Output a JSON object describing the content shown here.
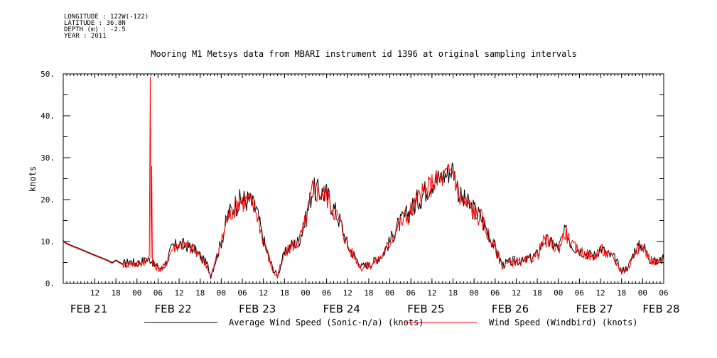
{
  "metadata": {
    "longitude": "LONGITUDE : 122W(-122)",
    "latitude": "LATITUDE : 36.8N",
    "depth": "DEPTH (m) : -2.5",
    "year": "YEAR : 2011"
  },
  "chart_data": {
    "type": "line",
    "title": "Mooring M1 Metsys data from MBARI instrument id 1396 at original sampling intervals",
    "ylabel": "knots",
    "xlabel": "",
    "ylim": [
      0,
      50
    ],
    "y_ticks": [
      "0.",
      "10.",
      "20.",
      "30.",
      "40.",
      "50."
    ],
    "xlim_hours": [
      3,
      174
    ],
    "hour_ticks": [
      {
        "h": 12,
        "label": "12"
      },
      {
        "h": 18,
        "label": "18"
      },
      {
        "h": 24,
        "label": "00"
      },
      {
        "h": 30,
        "label": "06"
      },
      {
        "h": 36,
        "label": "12"
      },
      {
        "h": 42,
        "label": "18"
      },
      {
        "h": 48,
        "label": "00"
      },
      {
        "h": 54,
        "label": "06"
      },
      {
        "h": 60,
        "label": "12"
      },
      {
        "h": 66,
        "label": "18"
      },
      {
        "h": 72,
        "label": "00"
      },
      {
        "h": 78,
        "label": "06"
      },
      {
        "h": 84,
        "label": "12"
      },
      {
        "h": 90,
        "label": "18"
      },
      {
        "h": 96,
        "label": "00"
      },
      {
        "h": 102,
        "label": "06"
      },
      {
        "h": 108,
        "label": "12"
      },
      {
        "h": 114,
        "label": "18"
      },
      {
        "h": 120,
        "label": "00"
      },
      {
        "h": 126,
        "label": "06"
      },
      {
        "h": 132,
        "label": "12"
      },
      {
        "h": 138,
        "label": "18"
      },
      {
        "h": 144,
        "label": "00"
      },
      {
        "h": 150,
        "label": "06"
      },
      {
        "h": 156,
        "label": "12"
      },
      {
        "h": 162,
        "label": "18"
      },
      {
        "h": 168,
        "label": "00"
      },
      {
        "h": 174,
        "label": "06"
      }
    ],
    "date_labels": [
      {
        "h": 5,
        "label": "FEB 21"
      },
      {
        "h": 29,
        "label": "FEB 22"
      },
      {
        "h": 53,
        "label": "FEB 23"
      },
      {
        "h": 77,
        "label": "FEB 24"
      },
      {
        "h": 101,
        "label": "FEB 25"
      },
      {
        "h": 125,
        "label": "FEB 26"
      },
      {
        "h": 149,
        "label": "FEB 27"
      },
      {
        "h": 168,
        "label": "FEB 28"
      }
    ],
    "grid": false,
    "legend_position": "bottom",
    "series": [
      {
        "name": "Average Wind Speed (Sonic-n/a) (knots)",
        "color": "#000000",
        "points": [
          [
            3,
            10.2
          ],
          [
            4,
            9.6
          ],
          [
            5,
            9.2
          ],
          [
            8,
            8.2
          ],
          [
            12,
            6.8
          ],
          [
            15,
            5.8
          ],
          [
            17,
            5.0
          ],
          [
            18,
            5.6
          ],
          [
            20,
            4.6
          ],
          [
            22,
            5.2
          ],
          [
            24,
            4.8
          ],
          [
            26,
            5.5
          ],
          [
            28,
            5.8
          ],
          [
            29,
            4.2
          ],
          [
            30,
            4.0
          ],
          [
            31,
            3.5
          ],
          [
            32,
            4.5
          ],
          [
            34,
            8.5
          ],
          [
            36,
            9.6
          ],
          [
            38,
            9.0
          ],
          [
            40,
            8.4
          ],
          [
            42,
            6.5
          ],
          [
            44,
            4.5
          ],
          [
            45,
            1.8
          ],
          [
            46,
            4.5
          ],
          [
            48,
            10.0
          ],
          [
            50,
            16.5
          ],
          [
            52,
            18.6
          ],
          [
            53,
            19.5
          ],
          [
            54,
            20.0
          ],
          [
            56,
            19.8
          ],
          [
            58,
            17.5
          ],
          [
            60,
            10.5
          ],
          [
            62,
            5.0
          ],
          [
            63,
            3.0
          ],
          [
            64,
            1.8
          ],
          [
            65,
            4.5
          ],
          [
            66,
            7.0
          ],
          [
            68,
            9.2
          ],
          [
            70,
            10.0
          ],
          [
            72,
            15.0
          ],
          [
            74,
            22.5
          ],
          [
            76,
            22.0
          ],
          [
            78,
            21.2
          ],
          [
            80,
            18.0
          ],
          [
            82,
            14.5
          ],
          [
            84,
            9.0
          ],
          [
            86,
            6.5
          ],
          [
            88,
            4.0
          ],
          [
            90,
            4.5
          ],
          [
            92,
            5.5
          ],
          [
            94,
            7.0
          ],
          [
            96,
            10.0
          ],
          [
            98,
            13.5
          ],
          [
            100,
            15.5
          ],
          [
            102,
            17.5
          ],
          [
            104,
            20.0
          ],
          [
            106,
            22.0
          ],
          [
            108,
            24.0
          ],
          [
            110,
            25.0
          ],
          [
            112,
            26.0
          ],
          [
            114,
            27.5
          ],
          [
            116,
            20.5
          ],
          [
            118,
            19.0
          ],
          [
            120,
            17.5
          ],
          [
            122,
            15.8
          ],
          [
            124,
            12.0
          ],
          [
            126,
            8.5
          ],
          [
            128,
            4.5
          ],
          [
            130,
            5.0
          ],
          [
            132,
            5.5
          ],
          [
            134,
            5.2
          ],
          [
            136,
            6.0
          ],
          [
            138,
            7.0
          ],
          [
            140,
            10.5
          ],
          [
            142,
            9.5
          ],
          [
            144,
            8.5
          ],
          [
            146,
            12.5
          ],
          [
            148,
            9.0
          ],
          [
            150,
            8.0
          ],
          [
            152,
            7.2
          ],
          [
            154,
            6.5
          ],
          [
            156,
            8.5
          ],
          [
            158,
            7.0
          ],
          [
            160,
            6.0
          ],
          [
            162,
            3.0
          ],
          [
            164,
            4.0
          ],
          [
            166,
            8.5
          ],
          [
            168,
            9.2
          ],
          [
            170,
            6.0
          ],
          [
            172,
            5.0
          ],
          [
            174,
            6.0
          ]
        ]
      },
      {
        "name": "Wind Speed (Windbird) (knots)",
        "color": "#ff0000",
        "points": [
          [
            3,
            10.0
          ],
          [
            4,
            9.4
          ],
          [
            5,
            9.0
          ],
          [
            8,
            8.0
          ],
          [
            12,
            6.6
          ],
          [
            15,
            5.6
          ],
          [
            17,
            4.8
          ],
          [
            18,
            5.4
          ],
          [
            20,
            4.4
          ],
          [
            22,
            5.0
          ],
          [
            24,
            4.6
          ],
          [
            26,
            5.3
          ],
          [
            27.5,
            6.5
          ],
          [
            27.8,
            49.3
          ],
          [
            28.0,
            6.0
          ],
          [
            28.2,
            28.0
          ],
          [
            28.4,
            4.5
          ],
          [
            29,
            4.0
          ],
          [
            30,
            3.8
          ],
          [
            31,
            3.3
          ],
          [
            32,
            4.3
          ],
          [
            34,
            8.3
          ],
          [
            36,
            9.4
          ],
          [
            38,
            8.8
          ],
          [
            40,
            8.2
          ],
          [
            42,
            6.3
          ],
          [
            44,
            4.3
          ],
          [
            45,
            1.6
          ],
          [
            46,
            4.3
          ],
          [
            48,
            9.8
          ],
          [
            50,
            16.3
          ],
          [
            52,
            18.4
          ],
          [
            53,
            19.3
          ],
          [
            54,
            19.8
          ],
          [
            56,
            19.6
          ],
          [
            58,
            17.3
          ],
          [
            60,
            10.3
          ],
          [
            62,
            4.8
          ],
          [
            63,
            2.8
          ],
          [
            64,
            1.6
          ],
          [
            65,
            4.3
          ],
          [
            66,
            6.8
          ],
          [
            68,
            9.0
          ],
          [
            70,
            9.8
          ],
          [
            72,
            14.8
          ],
          [
            74,
            22.3
          ],
          [
            76,
            21.8
          ],
          [
            78,
            21.0
          ],
          [
            80,
            17.8
          ],
          [
            82,
            14.3
          ],
          [
            84,
            8.8
          ],
          [
            86,
            6.3
          ],
          [
            88,
            3.8
          ],
          [
            90,
            4.3
          ],
          [
            92,
            5.3
          ],
          [
            94,
            6.8
          ],
          [
            96,
            9.8
          ],
          [
            98,
            13.3
          ],
          [
            100,
            15.3
          ],
          [
            102,
            17.3
          ],
          [
            104,
            19.8
          ],
          [
            106,
            21.8
          ],
          [
            108,
            23.8
          ],
          [
            110,
            24.8
          ],
          [
            112,
            25.8
          ],
          [
            114,
            27.3
          ],
          [
            116,
            20.3
          ],
          [
            118,
            18.8
          ],
          [
            120,
            17.3
          ],
          [
            122,
            15.6
          ],
          [
            124,
            11.8
          ],
          [
            126,
            8.3
          ],
          [
            128,
            4.3
          ],
          [
            130,
            4.8
          ],
          [
            132,
            5.3
          ],
          [
            134,
            5.0
          ],
          [
            136,
            5.8
          ],
          [
            138,
            6.8
          ],
          [
            140,
            10.3
          ],
          [
            142,
            9.3
          ],
          [
            144,
            8.3
          ],
          [
            146,
            12.3
          ],
          [
            148,
            8.8
          ],
          [
            150,
            7.8
          ],
          [
            152,
            7.0
          ],
          [
            154,
            6.3
          ],
          [
            156,
            8.3
          ],
          [
            158,
            6.8
          ],
          [
            160,
            5.8
          ],
          [
            162,
            2.8
          ],
          [
            164,
            3.8
          ],
          [
            166,
            8.3
          ],
          [
            168,
            9.0
          ],
          [
            170,
            5.8
          ],
          [
            172,
            4.8
          ],
          [
            174,
            5.8
          ]
        ]
      }
    ]
  }
}
